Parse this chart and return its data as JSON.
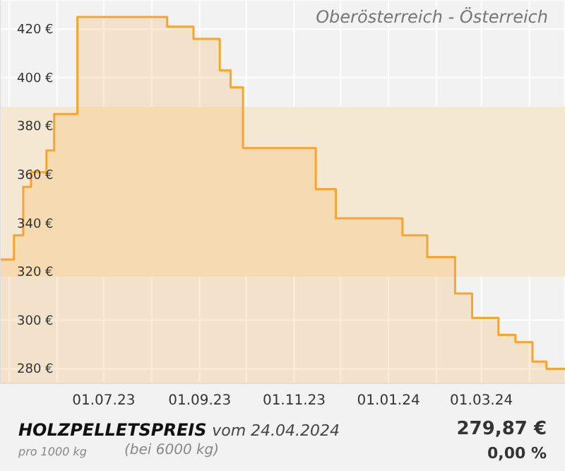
{
  "chart_data": {
    "type": "area",
    "title": "HOLZPELLETSPREIS",
    "subtitle": "vom 24.04.2024",
    "annotations": [
      "Oberösterreich - Österreich",
      "pro 1000 kg",
      "(bei 6000 kg)",
      "279,87 €",
      "0,00 %"
    ],
    "x": [
      "2023-04-25",
      "2023-05-04",
      "2023-05-04",
      "2023-05-10",
      "2023-05-10",
      "2023-05-15",
      "2023-05-15",
      "2023-05-25",
      "2023-05-25",
      "2023-05-30",
      "2023-05-30",
      "2023-06-14",
      "2023-06-14",
      "2023-08-11",
      "2023-08-11",
      "2023-08-28",
      "2023-08-28",
      "2023-09-14",
      "2023-09-14",
      "2023-09-21",
      "2023-09-21",
      "2023-09-29",
      "2023-09-29",
      "2023-11-15",
      "2023-11-15",
      "2023-11-28",
      "2023-11-28",
      "2024-01-10",
      "2024-01-10",
      "2024-01-26",
      "2024-01-26",
      "2024-02-13",
      "2024-02-13",
      "2024-02-24",
      "2024-02-24",
      "2024-03-12",
      "2024-03-12",
      "2024-03-23",
      "2024-03-23",
      "2024-04-03",
      "2024-04-03",
      "2024-04-12",
      "2024-04-12",
      "2024-04-24"
    ],
    "series": [
      {
        "color": "#f5a530",
        "values": [
          325,
          325,
          335,
          335,
          355,
          355,
          361,
          361,
          370,
          370,
          385,
          385,
          425,
          425,
          421,
          421,
          416,
          416,
          403,
          403,
          396,
          396,
          371,
          371,
          354,
          354,
          342,
          342,
          335,
          335,
          326,
          326,
          311,
          311,
          301,
          301,
          294,
          294,
          291,
          291,
          283,
          283,
          280,
          280
        ]
      }
    ],
    "xlim": [
      "2023-04-25",
      "2024-04-24"
    ],
    "xticks": [
      {
        "value": "2023-05-01",
        "label": null
      },
      {
        "value": "2023-06-01",
        "label": null
      },
      {
        "value": "2023-07-01",
        "label": "01.07.23"
      },
      {
        "value": "2023-08-01",
        "label": null
      },
      {
        "value": "2023-09-01",
        "label": "01.09.23"
      },
      {
        "value": "2023-10-01",
        "label": null
      },
      {
        "value": "2023-11-01",
        "label": "01.11.23"
      },
      {
        "value": "2023-12-01",
        "label": null
      },
      {
        "value": "2024-01-01",
        "label": "01.01.24"
      },
      {
        "value": "2024-02-01",
        "label": null
      },
      {
        "value": "2024-03-01",
        "label": "01.03.24"
      },
      {
        "value": "2024-04-01",
        "label": null
      }
    ],
    "ylim": [
      274,
      432
    ],
    "yticks": [
      {
        "value": 280,
        "label": "280 €"
      },
      {
        "value": 300,
        "label": "300 €"
      },
      {
        "value": 320,
        "label": "320 €"
      },
      {
        "value": 340,
        "label": "340 €"
      },
      {
        "value": 360,
        "label": "360 €"
      },
      {
        "value": 380,
        "label": "380 €"
      },
      {
        "value": 400,
        "label": "400 €"
      },
      {
        "value": 420,
        "label": "420 €"
      }
    ],
    "bands": [
      {
        "axis": "y",
        "from": 318,
        "to": 388,
        "color": "#f5e8d2"
      }
    ],
    "grid": true
  }
}
